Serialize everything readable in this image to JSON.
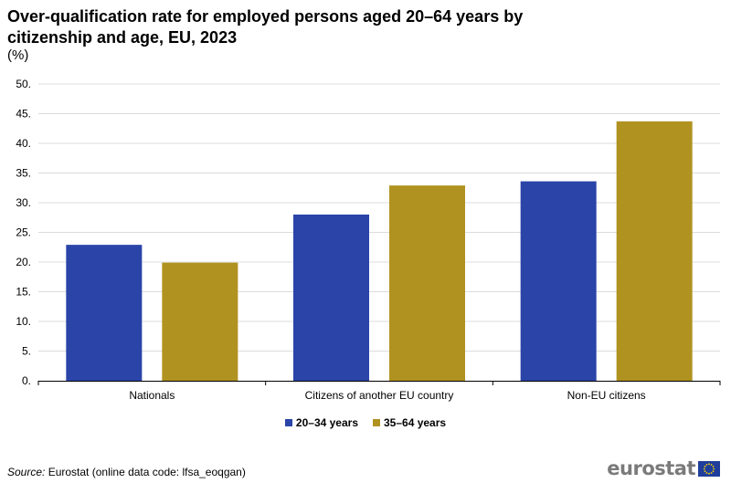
{
  "chart_data": {
    "type": "bar",
    "title": "Over-qualification rate for employed persons aged 20–64 years by citizenship and age, EU, 2023",
    "unit_label": "(%)",
    "categories": [
      "Nationals",
      "Citizens of another EU country",
      "Non-EU citizens"
    ],
    "series": [
      {
        "name": "20–34 years",
        "color": "#2a44a8",
        "values": [
          22.9,
          28.0,
          33.6
        ]
      },
      {
        "name": "35–64 years",
        "color": "#b09220",
        "values": [
          19.9,
          32.9,
          43.7
        ]
      }
    ],
    "ylim": [
      0,
      50
    ],
    "yticks": [
      0,
      5,
      10,
      15,
      20,
      25,
      30,
      35,
      40,
      45,
      50
    ],
    "ytick_labels": [
      "0.",
      "5.",
      "10.",
      "15.",
      "20.",
      "25.",
      "30.",
      "35.",
      "40.",
      "45.",
      "50."
    ],
    "grid": true,
    "legend_position": "bottom-center",
    "xlabel": "",
    "ylabel": ""
  },
  "source": {
    "prefix": "Source:",
    "text": "Eurostat (online data code: lfsa_eoqgan)"
  },
  "logo": {
    "text": "eurostat",
    "color": "#7a7a7a",
    "flag_color": "#1f3e9b",
    "star_color": "#ffd700"
  },
  "colors": {
    "grid": "#dcdcdc",
    "axis": "#000000"
  }
}
